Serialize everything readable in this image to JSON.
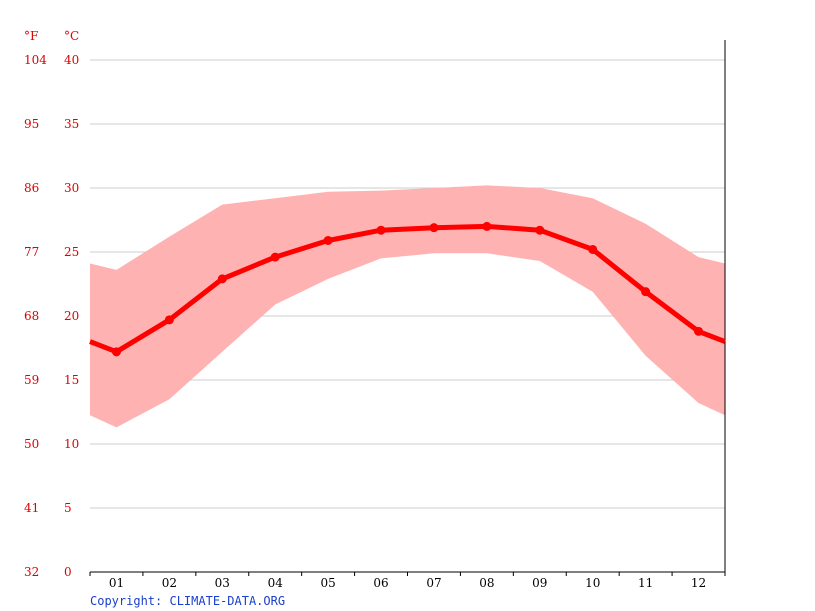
{
  "chart_data": {
    "type": "line",
    "title": "",
    "unit_left": "°F",
    "unit_right": "°C",
    "ylim": [
      0,
      40
    ],
    "y_ticks_c": [
      "40",
      "35",
      "30",
      "25",
      "20",
      "15",
      "10",
      "5",
      "0"
    ],
    "y_ticks_f": [
      "104",
      "95",
      "86",
      "77",
      "68",
      "59",
      "50",
      "41",
      "32"
    ],
    "categories": [
      "01",
      "02",
      "03",
      "04",
      "05",
      "06",
      "07",
      "08",
      "09",
      "10",
      "11",
      "12"
    ],
    "series": [
      {
        "values": [
          17.2,
          19.7,
          22.9,
          24.6,
          25.9,
          26.7,
          26.9,
          27.0,
          26.7,
          25.2,
          21.9,
          18.8
        ]
      },
      {
        "values": [
          23.6,
          26.2,
          28.7,
          29.2,
          29.7,
          29.8,
          30.0,
          30.2,
          30.0,
          29.2,
          27.2,
          24.6
        ]
      },
      {
        "values": [
          11.3,
          13.5,
          17.2,
          20.9,
          22.9,
          24.5,
          24.9,
          24.9,
          24.3,
          21.9,
          16.9,
          13.2
        ]
      }
    ],
    "grid": true,
    "colors": {
      "line": "#ff0000",
      "band": "#ffb2b2",
      "grid": "#cccccc",
      "tick_text": "#e00000"
    }
  },
  "footer": {
    "copyright": "Copyright: CLIMATE-DATA.ORG"
  }
}
